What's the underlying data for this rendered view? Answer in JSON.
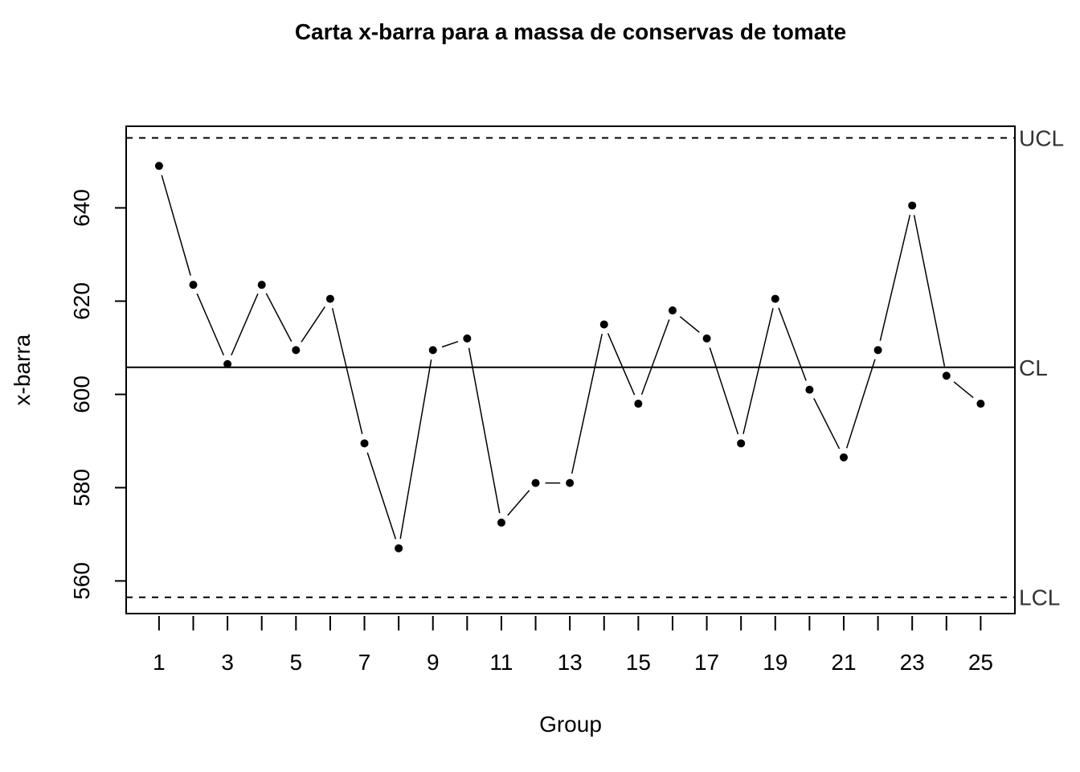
{
  "chart_data": {
    "type": "line",
    "title": "Carta x-barra para a massa de conservas de tomate",
    "xlabel": "Group",
    "ylabel": "x-barra",
    "x": [
      1,
      2,
      3,
      4,
      5,
      6,
      7,
      8,
      9,
      10,
      11,
      12,
      13,
      14,
      15,
      16,
      17,
      18,
      19,
      20,
      21,
      22,
      23,
      24,
      25
    ],
    "values": [
      649,
      623.5,
      606.5,
      623.5,
      609.5,
      620.5,
      589.5,
      567,
      609.5,
      612,
      572.5,
      581,
      581,
      615,
      598,
      618,
      612,
      589.5,
      620.5,
      601,
      586.5,
      609.5,
      640.5,
      604,
      598
    ],
    "x_ticks": [
      "1",
      "3",
      "5",
      "7",
      "9",
      "11",
      "13",
      "15",
      "17",
      "19",
      "21",
      "23",
      "25"
    ],
    "y_ticks": [
      "560",
      "580",
      "600",
      "620",
      "640"
    ],
    "xlim": [
      0.04,
      26.0
    ],
    "ylim": [
      553,
      657.5
    ],
    "control_limits": {
      "ucl": {
        "label": "UCL",
        "value": 655
      },
      "cl": {
        "label": "CL",
        "value": 605.8
      },
      "lcl": {
        "label": "LCL",
        "value": 556.5
      }
    },
    "grid": false,
    "legend": "none"
  }
}
